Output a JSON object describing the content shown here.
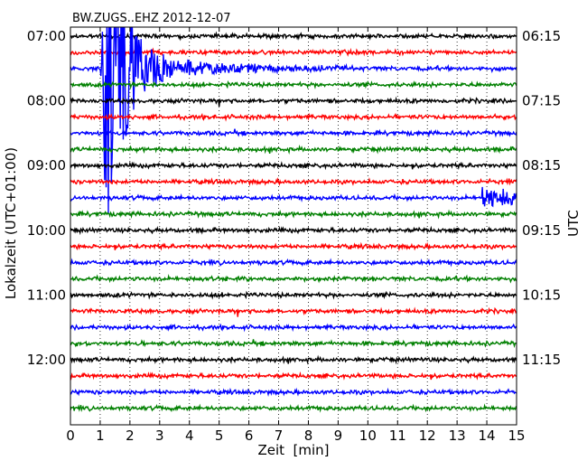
{
  "chart_data": {
    "type": "line",
    "title": "BW.ZUGS..EHZ 2012-12-07",
    "xlabel": "Zeit  [min]",
    "ylabel_left": "Lokalzeit (UTC+01:00)",
    "ylabel_right": "UTC",
    "x_range": [
      0,
      15
    ],
    "x_ticks": [
      "0",
      "1",
      "2",
      "3",
      "4",
      "5",
      "6",
      "7",
      "8",
      "9",
      "10",
      "11",
      "12",
      "13",
      "14",
      "15"
    ],
    "grid_x": true,
    "left_ticks": [
      {
        "row": 0,
        "label": "07:00"
      },
      {
        "row": 4,
        "label": "08:00"
      },
      {
        "row": 8,
        "label": "09:00"
      },
      {
        "row": 12,
        "label": "10:00"
      },
      {
        "row": 16,
        "label": "11:00"
      },
      {
        "row": 20,
        "label": "12:00"
      }
    ],
    "right_ticks": [
      {
        "row": 0,
        "label": "06:15"
      },
      {
        "row": 4,
        "label": "07:15"
      },
      {
        "row": 8,
        "label": "08:15"
      },
      {
        "row": 12,
        "label": "09:15"
      },
      {
        "row": 16,
        "label": "10:15"
      },
      {
        "row": 20,
        "label": "11:15"
      }
    ],
    "trace_colors": [
      "#000000",
      "#ff0000",
      "#0000ff",
      "#008000"
    ],
    "trace_count": 24,
    "minutes_per_trace": 15,
    "events": [
      {
        "trace": 2,
        "start_min": 1.0,
        "end_min": 3.5,
        "peak_min": 1.45,
        "amplitude_traces": 10.0,
        "coda_end_min": 10.0,
        "note": "large event"
      },
      {
        "trace": 10,
        "start_min": 13.85,
        "end_min": 15.0,
        "peak_min": 13.95,
        "amplitude_traces": 0.8
      }
    ]
  }
}
